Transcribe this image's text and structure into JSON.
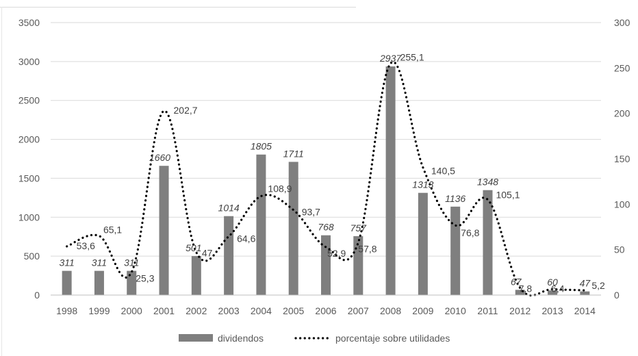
{
  "chart_data": {
    "type": "bar+line",
    "categories": [
      "1998",
      "1999",
      "2000",
      "2001",
      "2002",
      "2003",
      "2004",
      "2005",
      "2006",
      "2007",
      "2008",
      "2009",
      "2010",
      "2011",
      "2012",
      "2013",
      "2014"
    ],
    "series": [
      {
        "name": "dividendos",
        "type": "bar",
        "axis": "left",
        "color": "#7f7f7f",
        "values": [
          311,
          311,
          311,
          1660,
          501,
          1014,
          1805,
          1711,
          768,
          757,
          2937,
          1313,
          1136,
          1348,
          67,
          60,
          47
        ]
      },
      {
        "name": "porcentaje sobre utilidades",
        "type": "line",
        "axis": "right",
        "line_style": "dotted",
        "color": "#000000",
        "values": [
          53.6,
          65.1,
          25.3,
          202.7,
          47,
          64.6,
          108.9,
          93.7,
          52.9,
          57.8,
          255.1,
          140.5,
          76.8,
          105.1,
          7.8,
          6.4,
          5.2
        ]
      }
    ],
    "bar_labels": [
      "311",
      "311",
      "311",
      "1660",
      "501",
      "1014",
      "1805",
      "1711",
      "768",
      "757",
      "2937",
      "1313",
      "1136",
      "1348",
      "67",
      "60",
      "47"
    ],
    "line_labels": [
      "53,6",
      "65,1",
      "25,3",
      "202,7",
      "47",
      "64,6",
      "108,9",
      "93,7",
      "52,9",
      "57,8",
      "255,1",
      "140,5",
      "76,8",
      "105,1",
      "7,8",
      "6,4",
      "5,2"
    ],
    "y_left": {
      "min": 0,
      "max": 3500,
      "ticks": [
        "0",
        "500",
        "1000",
        "1500",
        "2000",
        "2500",
        "3000",
        "3500"
      ]
    },
    "y_right": {
      "min": 0,
      "max": 300,
      "ticks": [
        "0",
        "50",
        "100",
        "150",
        "200",
        "250",
        "300"
      ]
    },
    "grid": "horizontal",
    "legend_position": "bottom",
    "legend": [
      "dividendos",
      "porcentaje sobre utilidades"
    ]
  }
}
